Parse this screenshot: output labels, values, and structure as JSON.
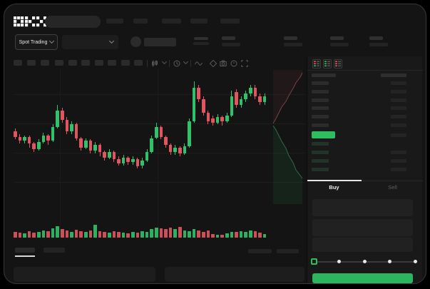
{
  "header": {
    "logo_text": "OKX"
  },
  "subheader": {
    "market_selector": {
      "label": "Spot Trading"
    }
  },
  "toolbar": {
    "timeframe_slot_count": 10,
    "icons": [
      "candle-type-icon",
      "chevron-down-icon",
      "interval-icon",
      "chevron-down-icon",
      "indicator-line-icon",
      "eraser-icon",
      "camera-icon",
      "clock-icon",
      "fullscreen-icon"
    ]
  },
  "order_book": {
    "mode_icons": [
      "combined-book-icon",
      "bids-book-icon",
      "asks-book-icon"
    ],
    "ask_row_count": 6,
    "bid_row_count": 4,
    "right_column_row_count": 10,
    "last_price_highlight_color": "#2ebd5f"
  },
  "trade_panel": {
    "tabs": {
      "buy": "Buy",
      "sell": "Sell",
      "active": "Buy"
    },
    "slider": {
      "stops": 5,
      "active_index": 0
    },
    "submit_button_color": "#2db45f"
  },
  "colors": {
    "background": "#141414",
    "panel": "#191919",
    "green": "#2ebd5f",
    "candle_green": "#2fc26a",
    "candle_red": "#e05560",
    "buy_button": "#2db45f",
    "depth_ask_line": "#7a4046",
    "depth_bid_line": "#2e6b4d"
  },
  "chart_data": {
    "type": "candlestick",
    "note": "price and time axes show no labels in source; values normalized to 0-100 scale",
    "ylim": [
      0,
      100
    ],
    "legend": "none",
    "grid": "faint horizontal lines",
    "candles": [
      [
        55,
        51,
        57,
        49
      ],
      [
        51,
        48,
        53,
        46
      ],
      [
        48,
        51,
        52,
        46
      ],
      [
        51,
        46,
        52,
        43
      ],
      [
        46,
        42,
        47,
        40
      ],
      [
        42,
        47,
        49,
        41
      ],
      [
        47,
        52,
        54,
        46
      ],
      [
        52,
        48,
        53,
        45
      ],
      [
        48,
        58,
        60,
        47
      ],
      [
        58,
        70,
        74,
        57
      ],
      [
        70,
        63,
        72,
        61
      ],
      [
        63,
        55,
        65,
        53
      ],
      [
        55,
        60,
        62,
        53
      ],
      [
        60,
        50,
        61,
        48
      ],
      [
        50,
        43,
        51,
        41
      ],
      [
        43,
        48,
        50,
        42
      ],
      [
        48,
        41,
        49,
        39
      ],
      [
        41,
        45,
        47,
        39
      ],
      [
        45,
        40,
        46,
        37
      ],
      [
        40,
        36,
        41,
        34
      ],
      [
        36,
        40,
        42,
        35
      ],
      [
        40,
        35,
        41,
        33
      ],
      [
        35,
        32,
        37,
        30
      ],
      [
        32,
        36,
        38,
        30
      ],
      [
        36,
        33,
        37,
        31
      ],
      [
        33,
        35,
        37,
        31
      ],
      [
        35,
        30,
        36,
        28
      ],
      [
        30,
        34,
        36,
        28
      ],
      [
        34,
        40,
        42,
        33
      ],
      [
        40,
        50,
        52,
        39
      ],
      [
        50,
        58,
        61,
        49
      ],
      [
        58,
        51,
        59,
        49
      ],
      [
        51,
        45,
        52,
        43
      ],
      [
        45,
        40,
        46,
        38
      ],
      [
        40,
        43,
        45,
        38
      ],
      [
        43,
        39,
        44,
        37
      ],
      [
        39,
        44,
        46,
        38
      ],
      [
        44,
        62,
        64,
        43
      ],
      [
        62,
        86,
        91,
        61
      ],
      [
        86,
        78,
        88,
        76
      ],
      [
        78,
        68,
        80,
        66
      ],
      [
        68,
        62,
        70,
        60
      ],
      [
        64,
        61,
        66,
        59
      ],
      [
        61,
        65,
        67,
        60
      ],
      [
        65,
        62,
        66,
        59
      ],
      [
        62,
        66,
        68,
        61
      ],
      [
        66,
        80,
        84,
        65
      ],
      [
        83,
        74,
        85,
        72
      ],
      [
        74,
        78,
        80,
        72
      ],
      [
        78,
        82,
        84,
        76
      ],
      [
        82,
        86,
        88,
        80
      ],
      [
        86,
        80,
        88,
        78
      ],
      [
        80,
        76,
        82,
        74
      ],
      [
        76,
        80,
        82,
        74
      ]
    ],
    "volumes": [
      8,
      7,
      6,
      9,
      7,
      8,
      10,
      9,
      13,
      16,
      12,
      10,
      8,
      11,
      9,
      8,
      10,
      18,
      9,
      8,
      7,
      9,
      8,
      7,
      6,
      8,
      7,
      9,
      8,
      12,
      14,
      13,
      12,
      14,
      12,
      15,
      10,
      9,
      12,
      10,
      8,
      10,
      5,
      4,
      4,
      6,
      8,
      8,
      9,
      8,
      10,
      9,
      7,
      5
    ],
    "depth_overlay": {
      "asks_side": "top",
      "bids_side": "bottom"
    }
  }
}
